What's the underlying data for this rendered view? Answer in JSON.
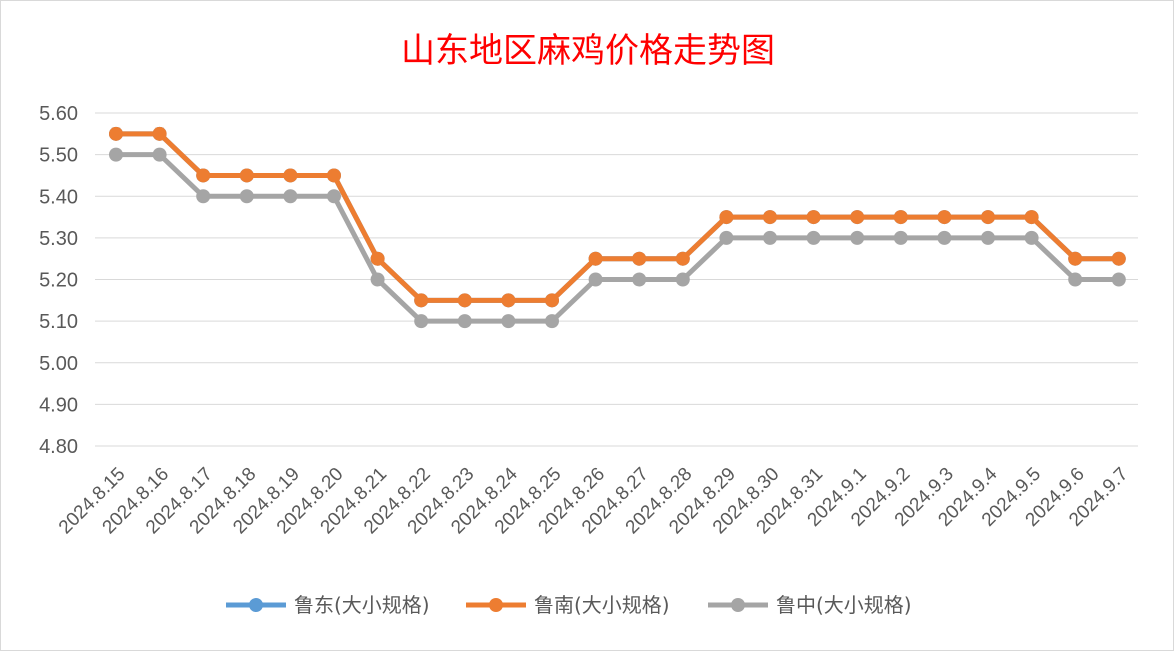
{
  "chart_data": {
    "type": "line",
    "title": "山东地区麻鸡价格走势图",
    "xlabel": "",
    "ylabel": "",
    "ylim": [
      4.8,
      5.6
    ],
    "yticks": [
      "4.80",
      "4.90",
      "5.00",
      "5.10",
      "5.20",
      "5.30",
      "5.40",
      "5.50",
      "5.60"
    ],
    "grid": true,
    "legend_position": "bottom",
    "categories": [
      "2024.8.15",
      "2024.8.16",
      "2024.8.17",
      "2024.8.18",
      "2024.8.19",
      "2024.8.20",
      "2024.8.21",
      "2024.8.22",
      "2024.8.23",
      "2024.8.24",
      "2024.8.25",
      "2024.8.26",
      "2024.8.27",
      "2024.8.28",
      "2024.8.29",
      "2024.8.30",
      "2024.8.31",
      "2024.9.1",
      "2024.9.2",
      "2024.9.3",
      "2024.9.4",
      "2024.9.5",
      "2024.9.6",
      "2024.9.7"
    ],
    "series": [
      {
        "name": "鲁东(大小规格)",
        "color": "#5b9bd5",
        "values": [
          5.55,
          5.55,
          5.45,
          5.45,
          5.45,
          5.45,
          5.25,
          5.15,
          5.15,
          5.15,
          5.15,
          5.25,
          5.25,
          5.25,
          5.35,
          5.35,
          5.35,
          5.35,
          5.35,
          5.35,
          5.35,
          5.35,
          5.25,
          5.25
        ]
      },
      {
        "name": "鲁南(大小规格)",
        "color": "#ed7d31",
        "values": [
          5.55,
          5.55,
          5.45,
          5.45,
          5.45,
          5.45,
          5.25,
          5.15,
          5.15,
          5.15,
          5.15,
          5.25,
          5.25,
          5.25,
          5.35,
          5.35,
          5.35,
          5.35,
          5.35,
          5.35,
          5.35,
          5.35,
          5.25,
          5.25
        ]
      },
      {
        "name": "鲁中(大小规格)",
        "color": "#a5a5a5",
        "values": [
          5.5,
          5.5,
          5.4,
          5.4,
          5.4,
          5.4,
          5.2,
          5.1,
          5.1,
          5.1,
          5.1,
          5.2,
          5.2,
          5.2,
          5.3,
          5.3,
          5.3,
          5.3,
          5.3,
          5.3,
          5.3,
          5.3,
          5.2,
          5.2
        ]
      }
    ]
  }
}
